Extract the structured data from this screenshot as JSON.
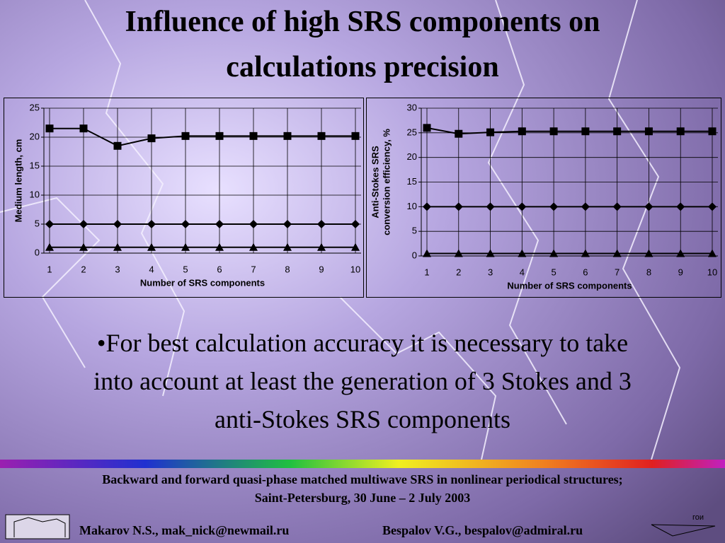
{
  "title": [
    "Influence of high SRS components on",
    "calculations precision"
  ],
  "chart_data": [
    {
      "type": "line",
      "categories": [
        "1",
        "2",
        "3",
        "4",
        "5",
        "6",
        "7",
        "8",
        "9",
        "10"
      ],
      "x_label": "Number of SRS components",
      "y_label": [
        "Medium length, cm"
      ],
      "ylim": [
        0,
        25
      ],
      "yticks": [
        0,
        5,
        10,
        15,
        20,
        25
      ],
      "grid": true,
      "series": [
        {
          "color": "#000000",
          "marker": "square",
          "values": [
            21.5,
            21.5,
            18.5,
            19.8,
            20.2,
            20.2,
            20.2,
            20.2,
            20.2,
            20.2
          ]
        },
        {
          "color": "#000000",
          "marker": "diamond",
          "values": [
            5,
            5,
            5,
            5,
            5,
            5,
            5,
            5,
            5,
            5
          ]
        },
        {
          "color": "#000000",
          "marker": "triangle",
          "values": [
            1,
            1,
            1,
            1,
            1,
            1,
            1,
            1,
            1,
            1
          ]
        }
      ]
    },
    {
      "type": "line",
      "categories": [
        "1",
        "2",
        "3",
        "4",
        "5",
        "6",
        "7",
        "8",
        "9",
        "10"
      ],
      "x_label": "Number of SRS components",
      "y_label": [
        "Anti-Stokes SRS",
        "conversion efficiency, %"
      ],
      "ylim": [
        0,
        30
      ],
      "yticks": [
        0,
        5,
        10,
        15,
        20,
        25,
        30
      ],
      "grid": true,
      "series": [
        {
          "color": "#000000",
          "marker": "square",
          "values": [
            26,
            24.8,
            25.1,
            25.3,
            25.3,
            25.3,
            25.3,
            25.3,
            25.3,
            25.3
          ]
        },
        {
          "color": "#000000",
          "marker": "diamond",
          "values": [
            10,
            10,
            10,
            10,
            10,
            10,
            10,
            10,
            10,
            10
          ]
        },
        {
          "color": "#000000",
          "marker": "triangle",
          "values": [
            0.5,
            0.5,
            0.5,
            0.5,
            0.5,
            0.5,
            0.5,
            0.5,
            0.5,
            0.5
          ]
        }
      ]
    }
  ],
  "bullet": [
    "•For best calculation accuracy it is necessary to take",
    "into account at least the generation of 3 Stokes and 3",
    "anti-Stokes SRS components"
  ],
  "footer": [
    "Backward and forward quasi-phase matched multiwave SRS in nonlinear periodical structures;",
    "Saint-Petersburg, 30 June – 2 July 2003"
  ],
  "authors": [
    "Makarov N.S., mak_nick@newmail.ru",
    "Bespalov V.G., bespalov@admiral.ru"
  ],
  "logo": "гои"
}
